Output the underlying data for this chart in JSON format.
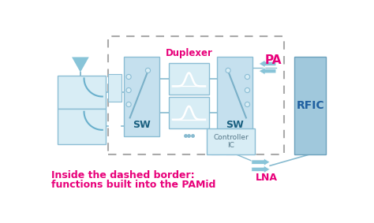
{
  "bg_color": "#ffffff",
  "dashed_border_color": "#aaaaaa",
  "block_fill": "#c5e0ee",
  "block_fill_light": "#d8edf5",
  "block_edge": "#8bbdd4",
  "rfic_fill": "#a0c8dc",
  "rfic_edge": "#6aa0bc",
  "text_sw": "#1a6080",
  "text_rfic": "#2060a0",
  "text_pink": "#e8007a",
  "text_gray": "#557788",
  "arrow_color": "#e8007a",
  "arrow_fill": "#88c4d8",
  "line_color": "#88bbd0",
  "bottom_text1": "Inside the dashed border:",
  "bottom_text2": "functions built into the PAMid",
  "label_sw1": "SW",
  "label_sw2": "SW",
  "label_rfic": "RFIC",
  "label_pa": "PA",
  "label_lna": "LNA",
  "label_duplexer": "Duplexer",
  "label_controller": "Controller\nIC"
}
